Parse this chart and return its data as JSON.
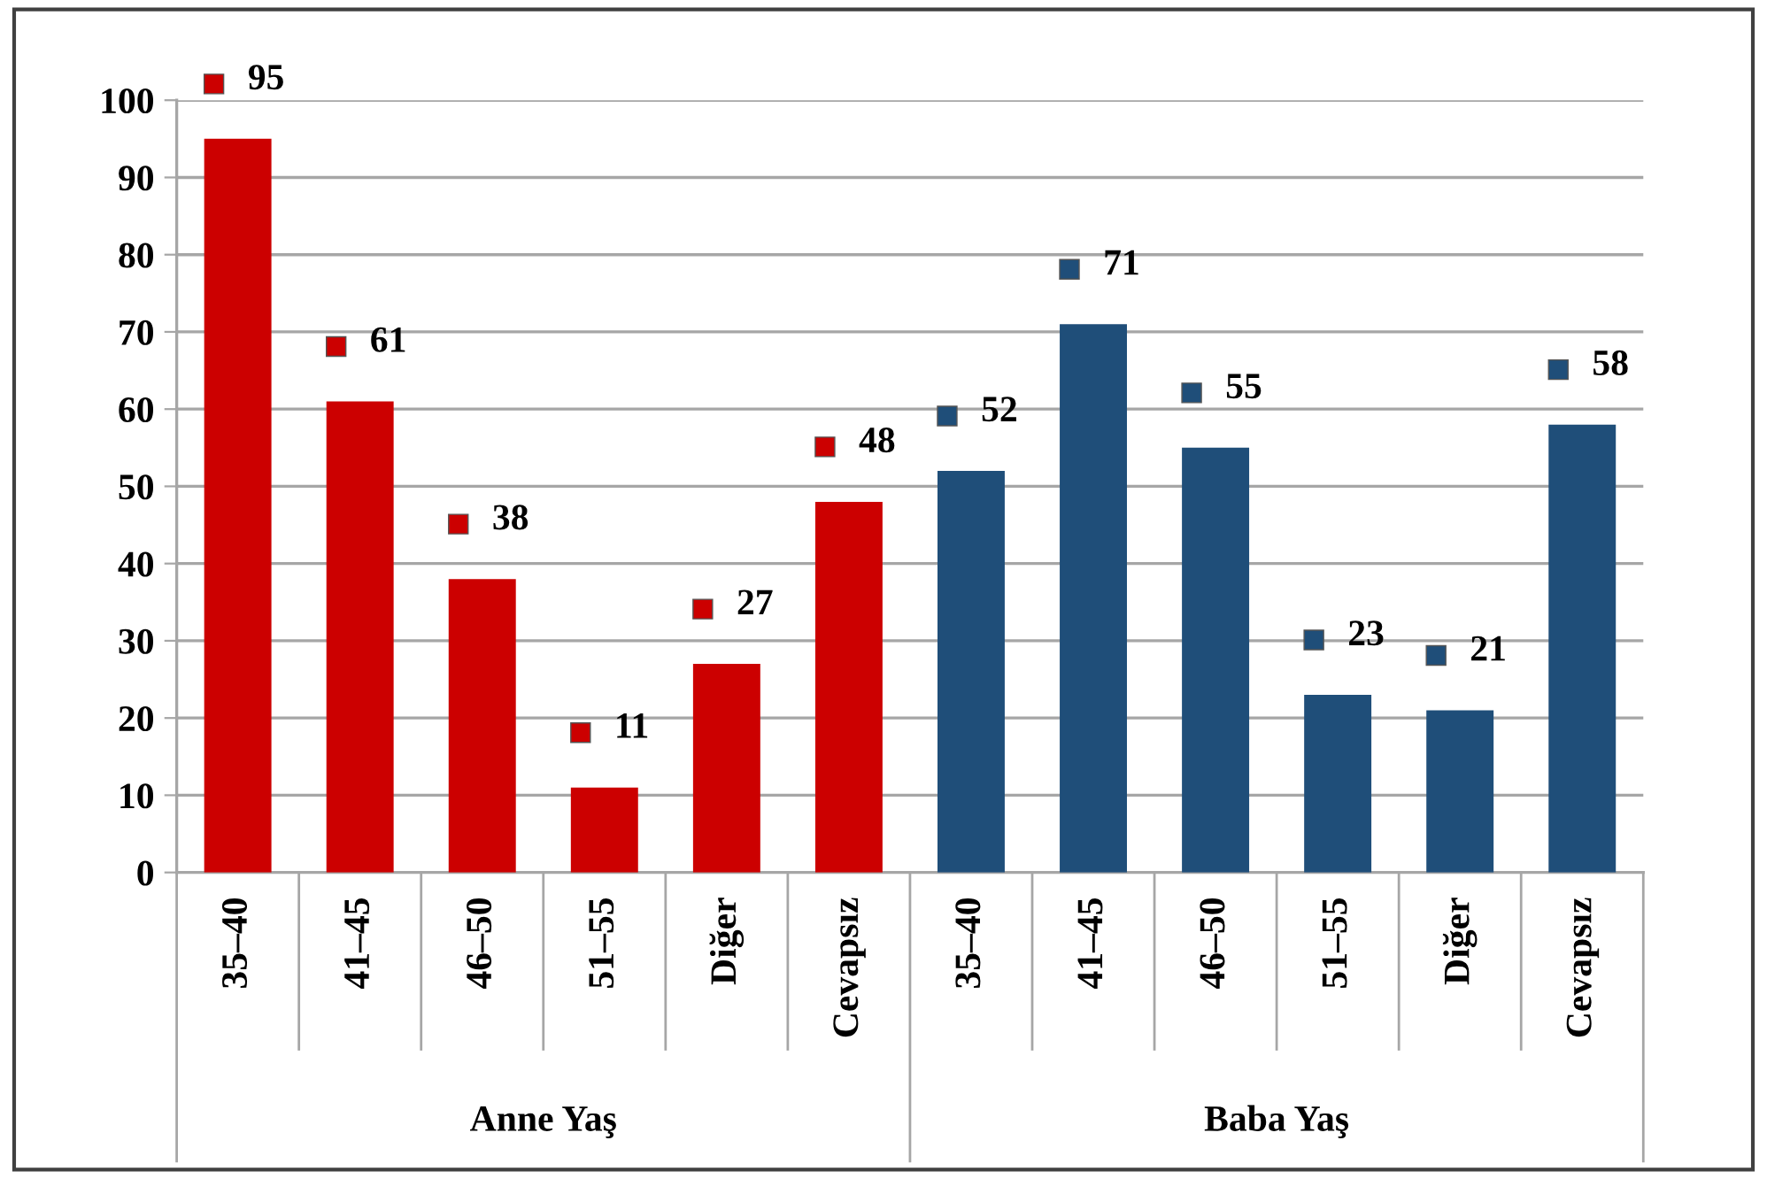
{
  "chart_data": {
    "type": "bar",
    "categories": [
      "35–40",
      "41–45",
      "46–50",
      "51–55",
      "Diğer",
      "Cevapsız",
      "35–40",
      "41–45",
      "46–50",
      "51–55",
      "Diğer",
      "Cevapsız"
    ],
    "series": [
      {
        "color": "#cc0000",
        "values": [
          95,
          61,
          38,
          11,
          27,
          48,
          null,
          null,
          null,
          null,
          null,
          null
        ]
      },
      {
        "color": "#1f4e79",
        "values": [
          null,
          null,
          null,
          null,
          null,
          null,
          52,
          71,
          55,
          23,
          21,
          58
        ]
      }
    ],
    "annotations": [
      "Anne Yaş",
      "Baba Yaş"
    ],
    "ylim": [
      0,
      100
    ],
    "yticks": [
      0,
      10,
      20,
      30,
      40,
      50,
      60,
      70,
      80,
      90,
      100
    ],
    "grid": "y",
    "data_labels": true
  }
}
